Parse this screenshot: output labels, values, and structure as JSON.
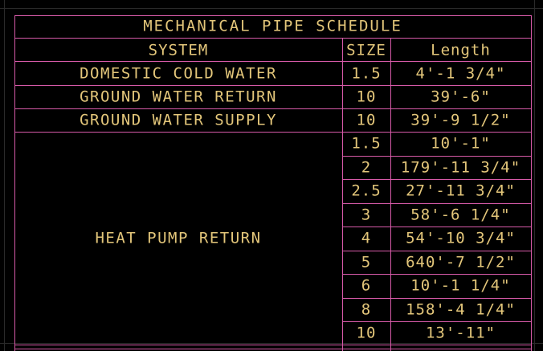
{
  "colors": {
    "background": "#000000",
    "table_lines": "#d65aa8",
    "text": "#e3c67a",
    "grid": "#2a2a2a"
  },
  "schedule": {
    "title": "MECHANICAL PIPE SCHEDULE",
    "headers": {
      "system": "SYSTEM",
      "size": "SIZE",
      "length": "Length"
    },
    "rows": [
      {
        "system": "DOMESTIC COLD WATER",
        "size": "1.5",
        "length": "4'-1 3/4\""
      },
      {
        "system": "GROUND WATER RETURN",
        "size": "10",
        "length": "39'-6\""
      },
      {
        "system": "GROUND WATER SUPPLY",
        "size": "10",
        "length": "39'-9 1/2\""
      }
    ],
    "group": {
      "system": "HEAT PUMP RETURN",
      "rows": [
        {
          "size": "1.5",
          "length": "10'-1\""
        },
        {
          "size": "2",
          "length": "179'-11 3/4\""
        },
        {
          "size": "2.5",
          "length": "27'-11 3/4\""
        },
        {
          "size": "3",
          "length": "58'-6 1/4\""
        },
        {
          "size": "4",
          "length": "54'-10 3/4\""
        },
        {
          "size": "5",
          "length": "640'-7 1/2\""
        },
        {
          "size": "6",
          "length": "10'-1 1/4\""
        },
        {
          "size": "8",
          "length": "158'-4 1/4\""
        },
        {
          "size": "10",
          "length": "13'-11\""
        }
      ]
    }
  }
}
